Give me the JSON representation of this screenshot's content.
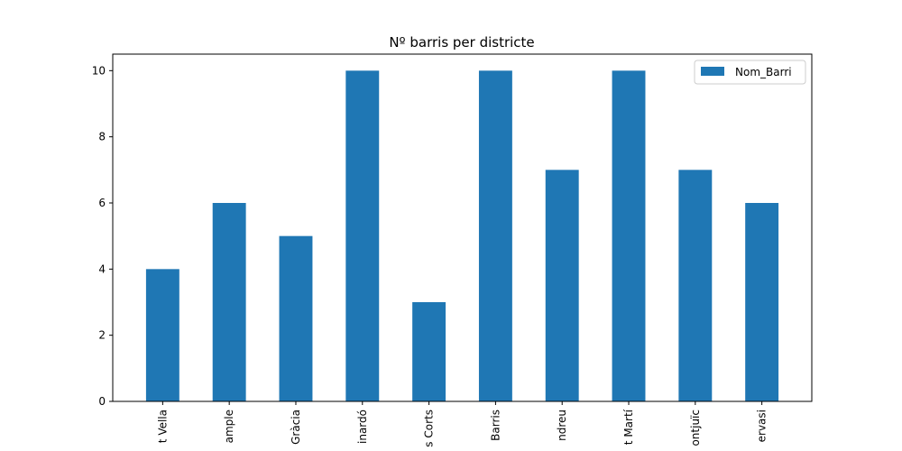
{
  "chart_data": {
    "type": "bar",
    "title": "Nº barris per districte",
    "xlabel": "",
    "ylabel": "",
    "categories": [
      "t Vella",
      "ample",
      "Gràcia",
      "inardó",
      "s Corts",
      "Barris",
      "ndreu",
      "t Martí",
      "ontjuïc",
      "ervasi"
    ],
    "series": [
      {
        "name": "Nom_Barri",
        "values": [
          4,
          6,
          5,
          10,
          3,
          10,
          7,
          10,
          7,
          6
        ],
        "color": "#1f77b4"
      }
    ],
    "ylim": [
      0,
      10.5
    ],
    "yticks": [
      0,
      2,
      4,
      6,
      8,
      10
    ],
    "grid": false,
    "legend": "top-right"
  }
}
